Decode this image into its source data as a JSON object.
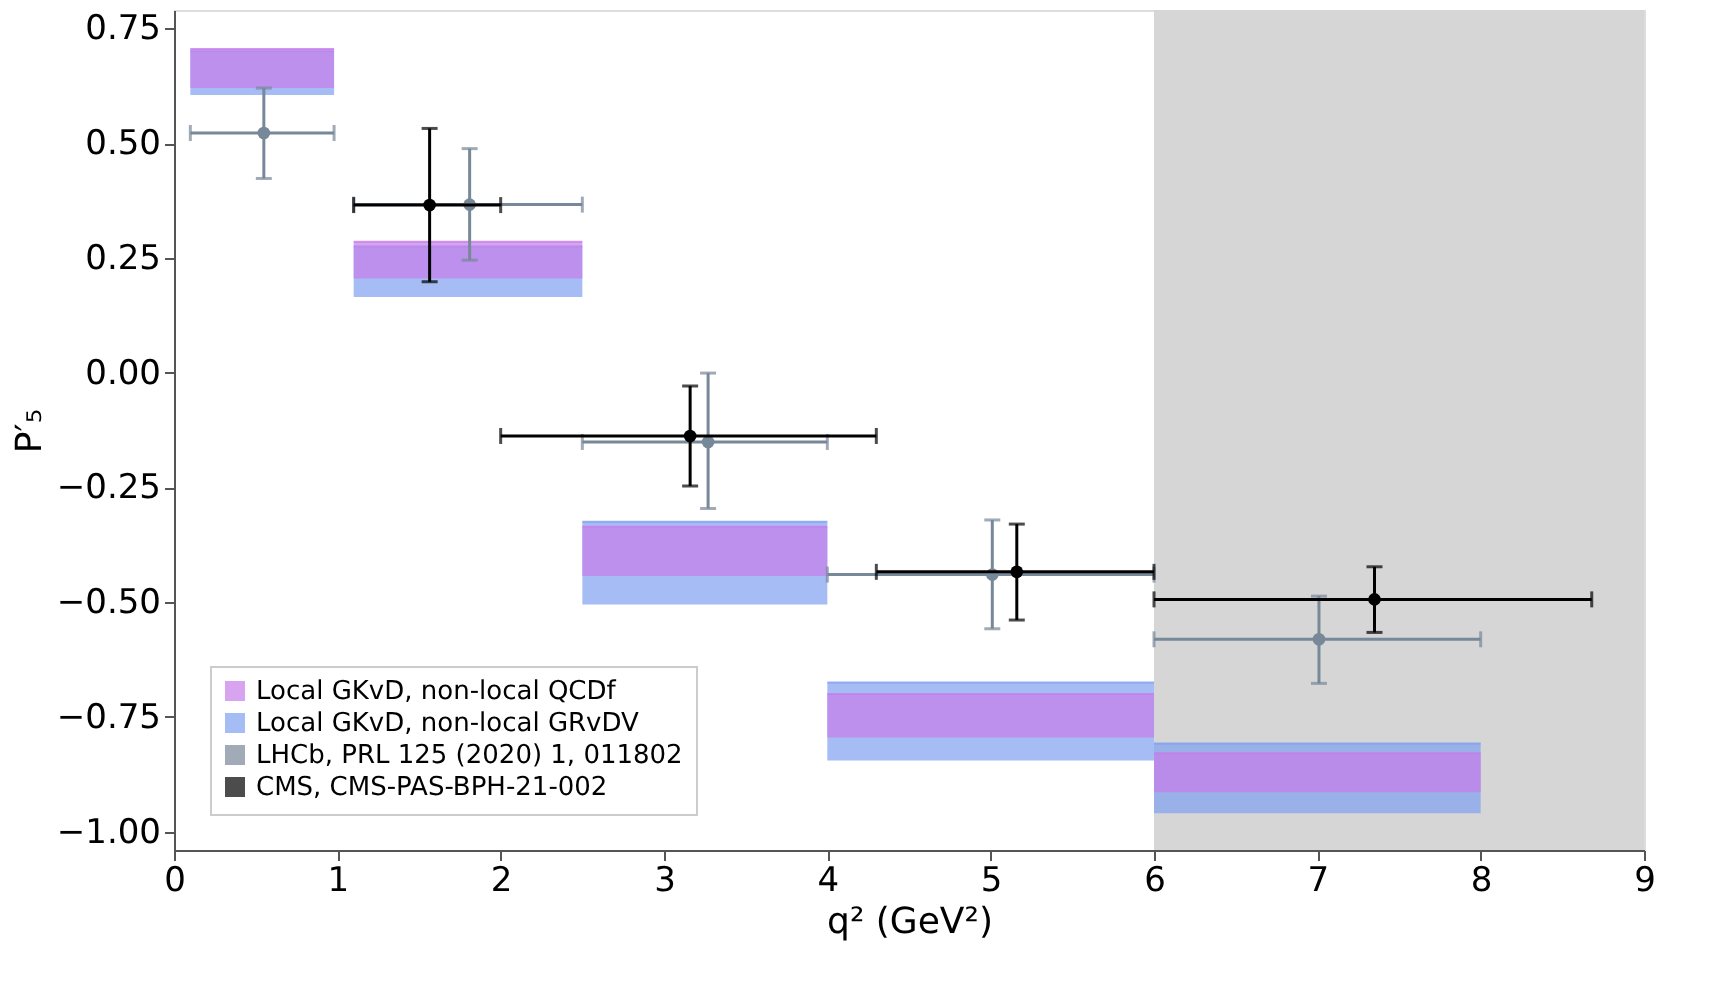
{
  "chart_data": {
    "type": "bar",
    "xlabel": "q² (GeV²)",
    "ylabel": "P′₅",
    "xlim": [
      0,
      9
    ],
    "xticks": [
      0,
      1,
      2,
      3,
      4,
      5,
      6,
      7,
      8,
      9
    ],
    "ylim": [
      -1.04,
      0.79
    ],
    "yticks": [
      {
        "value": -1,
        "label": "−1.00"
      },
      {
        "value": -0.75,
        "label": "−0.75"
      },
      {
        "value": -0.5,
        "label": "−0.50"
      },
      {
        "value": -0.25,
        "label": "−0.25"
      },
      {
        "value": 0,
        "label": "0.00"
      },
      {
        "value": 0.25,
        "label": "0.25"
      },
      {
        "value": 0.5,
        "label": "0.50"
      },
      {
        "value": 0.75,
        "label": "0.75"
      }
    ],
    "grid": false,
    "legend": "bottom left",
    "bands": [
      {
        "axis": "x",
        "from": 6,
        "to": 9,
        "color": "#d6d6d6"
      }
    ],
    "series": [
      {
        "name": "Local GKvD, non-local QCDf",
        "color": "#c77dea",
        "x": [
          0.54,
          1.8,
          3.25,
          5,
          7
        ],
        "xerrors": [
          [
            0.1,
            0.98
          ],
          [
            1.1,
            2.5
          ],
          [
            2.5,
            4
          ],
          [
            4,
            6
          ],
          [
            6,
            8
          ]
        ],
        "base": [
          0.62,
          0.205,
          -0.443,
          -0.795,
          -0.914
        ],
        "values": [
          0.085,
          0.08,
          0.107,
          0.095,
          0.085
        ]
      },
      {
        "name": "Local GKvD, non-local GRvDV",
        "color": "#7f9ff0",
        "x": [
          0.54,
          1.8,
          3.25,
          5,
          7
        ],
        "xerrors": [
          [
            0.1,
            0.98
          ],
          [
            1.1,
            2.5
          ],
          [
            2.5,
            4
          ],
          [
            4,
            6
          ],
          [
            6,
            8
          ]
        ],
        "base": [
          0.605,
          0.165,
          -0.505,
          -0.845,
          -0.96
        ],
        "values": [
          0.095,
          0.11,
          0.18,
          0.17,
          0.152
        ]
      },
      {
        "name": "LHCb, PRL 125 (2020) 1, 011802",
        "type": "scatter",
        "color": "#778899",
        "marker": "circle",
        "x": [
          0.55,
          1.81,
          3.27,
          5.01,
          7.01
        ],
        "values": [
          0.522,
          0.366,
          -0.151,
          -0.44,
          -0.581
        ],
        "errors": [
          [
            0.423,
            0.62
          ],
          [
            0.245,
            0.488
          ],
          [
            -0.296,
            -0.001
          ],
          [
            -0.558,
            -0.321
          ],
          [
            -0.677,
            -0.487
          ]
        ],
        "xerrors": [
          [
            0.1,
            0.98
          ],
          [
            1.1,
            2.5
          ],
          [
            2.5,
            4
          ],
          [
            4,
            6
          ],
          [
            6,
            8
          ]
        ]
      },
      {
        "name": "CMS, CMS-PAS-BPH-21-002",
        "type": "scatter",
        "color": "#000000",
        "marker": "circle",
        "x": [
          1.565,
          3.16,
          5.16,
          7.35
        ],
        "values": [
          0.365,
          -0.138,
          -0.434,
          -0.494
        ],
        "errors": [
          [
            0.198,
            0.532
          ],
          [
            -0.247,
            -0.029
          ],
          [
            -0.539,
            -0.33
          ],
          [
            -0.566,
            -0.423
          ]
        ],
        "xerrors": [
          [
            1.1,
            2.0
          ],
          [
            2.0,
            4.3
          ],
          [
            4.3,
            6.0
          ],
          [
            6.0,
            8.68
          ]
        ]
      }
    ]
  }
}
